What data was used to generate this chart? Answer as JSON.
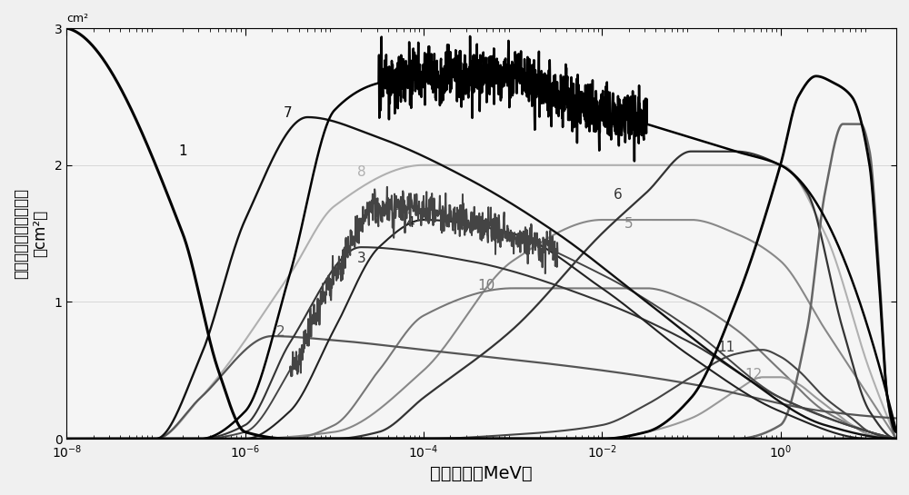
{
  "xlabel": "中子能量（MeV）",
  "ylabel": "对单位注量中子的响应（cm²）",
  "ylabel_top": "cm²",
  "xlim_log": [
    -8,
    1.3
  ],
  "ylim": [
    0,
    3.0
  ],
  "yticks": [
    0,
    1,
    2,
    3
  ],
  "background_color": "#f0f0f0",
  "plot_bg": "#f5f5f5"
}
